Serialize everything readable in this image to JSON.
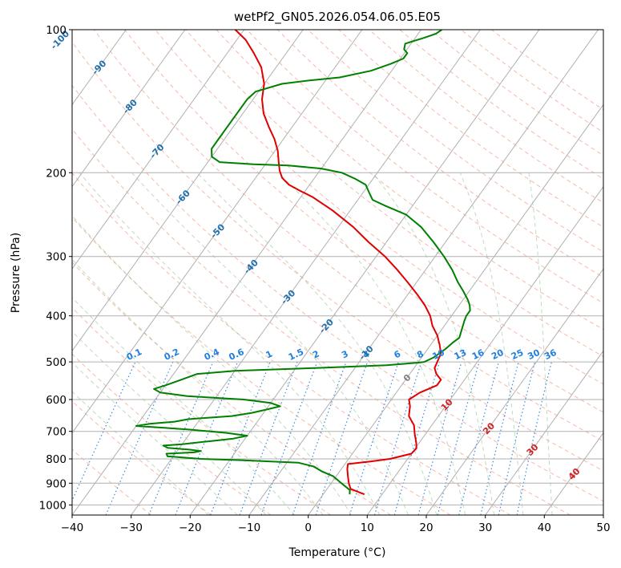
{
  "chart_data": {
    "type": "line",
    "title": "wetPf2_GN05.2026.054.06.05.E05",
    "xlabel": "Temperature (°C)",
    "ylabel": "Pressure (hPa)",
    "xlim": [
      -40,
      50
    ],
    "ylim": [
      1050,
      100
    ],
    "y_scale": "log",
    "x_ticks": [
      "−40",
      "−30",
      "−20",
      "−10",
      "0",
      "10",
      "20",
      "30",
      "40",
      "50"
    ],
    "y_ticks": [
      {
        "p": 100,
        "label": "100"
      },
      {
        "p": 200,
        "label": "200"
      },
      {
        "p": 300,
        "label": "300"
      },
      {
        "p": 400,
        "label": "400"
      },
      {
        "p": 500,
        "label": "500"
      },
      {
        "p": 600,
        "label": "600"
      },
      {
        "p": 700,
        "label": "700"
      },
      {
        "p": 800,
        "label": "800"
      },
      {
        "p": 900,
        "label": "900"
      },
      {
        "p": 1000,
        "label": "1000"
      }
    ],
    "grid": true,
    "colors": {
      "temperature": "#e00000",
      "dewpoint": "#008000",
      "isotherm": "#b0b0b0",
      "dry_adiabat": "#f08060",
      "moist_adiabat": "#70b070",
      "mixing_ratio": "#2080e0",
      "isotherm_label_cold": "#1f6fae",
      "isotherm_label_warm": "#d02020",
      "isotherm_label_zero": "#808080"
    },
    "series": [
      {
        "color": "#e00000",
        "points": [
          [
            950,
            7.0
          ],
          [
            925,
            4.0
          ],
          [
            900,
            3.0
          ],
          [
            870,
            2.0
          ],
          [
            840,
            1.0
          ],
          [
            820,
            0.5
          ],
          [
            810,
            4.0
          ],
          [
            800,
            7.0
          ],
          [
            780,
            10.0
          ],
          [
            760,
            10.2
          ],
          [
            740,
            9.5
          ],
          [
            710,
            8.2
          ],
          [
            680,
            7.0
          ],
          [
            650,
            5.0
          ],
          [
            620,
            4.0
          ],
          [
            600,
            3.0
          ],
          [
            580,
            4.0
          ],
          [
            560,
            6.0
          ],
          [
            545,
            6.0
          ],
          [
            530,
            4.5
          ],
          [
            515,
            3.5
          ],
          [
            500,
            3.2
          ],
          [
            480,
            2.8
          ],
          [
            460,
            1.5
          ],
          [
            440,
            0.0
          ],
          [
            420,
            -2.0
          ],
          [
            400,
            -3.6
          ],
          [
            380,
            -5.8
          ],
          [
            360,
            -8.5
          ],
          [
            340,
            -11.5
          ],
          [
            320,
            -14.8
          ],
          [
            300,
            -18.5
          ],
          [
            280,
            -23.0
          ],
          [
            260,
            -27.5
          ],
          [
            240,
            -33.0
          ],
          [
            225,
            -38.0
          ],
          [
            218,
            -41.0
          ],
          [
            212,
            -43.5
          ],
          [
            205,
            -45.5
          ],
          [
            198,
            -46.8
          ],
          [
            190,
            -48.0
          ],
          [
            180,
            -49.5
          ],
          [
            170,
            -51.5
          ],
          [
            160,
            -54.0
          ],
          [
            150,
            -56.5
          ],
          [
            140,
            -58.5
          ],
          [
            130,
            -60.0
          ],
          [
            120,
            -62.5
          ],
          [
            112,
            -65.5
          ],
          [
            105,
            -68.5
          ],
          [
            100,
            -71.5
          ]
        ]
      },
      {
        "color": "#008000",
        "points": [
          [
            950,
            4.5
          ],
          [
            930,
            4.0
          ],
          [
            910,
            2.5
          ],
          [
            890,
            1.0
          ],
          [
            870,
            -0.5
          ],
          [
            850,
            -3.0
          ],
          [
            830,
            -5.0
          ],
          [
            815,
            -8.0
          ],
          [
            805,
            -18.0
          ],
          [
            800,
            -25.0
          ],
          [
            790,
            -31.0
          ],
          [
            780,
            -31.5
          ],
          [
            775,
            -27.0
          ],
          [
            770,
            -26.0
          ],
          [
            765,
            -28.0
          ],
          [
            758,
            -32.0
          ],
          [
            750,
            -33.0
          ],
          [
            745,
            -30.0
          ],
          [
            735,
            -26.0
          ],
          [
            725,
            -22.0
          ],
          [
            715,
            -20.0
          ],
          [
            705,
            -24.0
          ],
          [
            695,
            -30.0
          ],
          [
            688,
            -35.0
          ],
          [
            682,
            -40.0
          ],
          [
            675,
            -38.0
          ],
          [
            668,
            -34.0
          ],
          [
            660,
            -32.0
          ],
          [
            650,
            -25.0
          ],
          [
            640,
            -22.0
          ],
          [
            630,
            -20.0
          ],
          [
            620,
            -18.0
          ],
          [
            610,
            -20.0
          ],
          [
            600,
            -25.0
          ],
          [
            590,
            -35.0
          ],
          [
            580,
            -40.0
          ],
          [
            570,
            -41.5
          ],
          [
            560,
            -40.0
          ],
          [
            545,
            -38.0
          ],
          [
            530,
            -36.0
          ],
          [
            522,
            -30.0
          ],
          [
            514,
            -15.0
          ],
          [
            508,
            -5.0
          ],
          [
            502,
            0.0
          ],
          [
            500,
            1.0
          ],
          [
            490,
            2.0
          ],
          [
            470,
            3.0
          ],
          [
            455,
            3.5
          ],
          [
            445,
            4.0
          ],
          [
            430,
            3.5
          ],
          [
            410,
            2.8
          ],
          [
            400,
            2.5
          ],
          [
            390,
            2.5
          ],
          [
            380,
            1.8
          ],
          [
            370,
            0.8
          ],
          [
            355,
            -1.0
          ],
          [
            340,
            -3.0
          ],
          [
            320,
            -5.5
          ],
          [
            300,
            -8.5
          ],
          [
            280,
            -12.0
          ],
          [
            260,
            -16.0
          ],
          [
            245,
            -20.0
          ],
          [
            235,
            -24.5
          ],
          [
            228,
            -27.5
          ],
          [
            220,
            -29.0
          ],
          [
            212,
            -30.5
          ],
          [
            206,
            -33.0
          ],
          [
            200,
            -36.0
          ],
          [
            196,
            -40.0
          ],
          [
            193,
            -46.0
          ],
          [
            192,
            -52.0
          ],
          [
            190,
            -58.0
          ],
          [
            185,
            -60.0
          ],
          [
            178,
            -61.0
          ],
          [
            170,
            -61.0
          ],
          [
            160,
            -61.0
          ],
          [
            150,
            -61.0
          ],
          [
            140,
            -61.0
          ],
          [
            135,
            -60.5
          ],
          [
            130,
            -57.0
          ],
          [
            128,
            -53.0
          ],
          [
            126,
            -48.0
          ],
          [
            122,
            -43.5
          ],
          [
            118,
            -41.0
          ],
          [
            115,
            -39.5
          ],
          [
            112,
            -39.5
          ],
          [
            110,
            -40.5
          ],
          [
            107,
            -41.0
          ],
          [
            104,
            -38.5
          ],
          [
            102,
            -37.0
          ],
          [
            100,
            -36.5
          ]
        ]
      }
    ],
    "isotherm_labels": [
      {
        "t": -100,
        "label": "-100",
        "p": 105
      },
      {
        "t": -90,
        "label": "-90",
        "p": 120
      },
      {
        "t": -80,
        "label": "-80",
        "p": 145
      },
      {
        "t": -70,
        "label": "-70",
        "p": 180
      },
      {
        "t": -60,
        "label": "-60",
        "p": 225
      },
      {
        "t": -50,
        "label": "-50",
        "p": 265
      },
      {
        "t": -40,
        "label": "-40",
        "p": 315
      },
      {
        "t": -30,
        "label": "-30",
        "p": 365
      },
      {
        "t": -20,
        "label": "-20",
        "p": 420
      },
      {
        "t": -10,
        "label": "-10",
        "p": 478
      },
      {
        "t": 0,
        "label": "0",
        "p": 540
      },
      {
        "t": 10,
        "label": "10",
        "p": 615
      },
      {
        "t": 20,
        "label": "20",
        "p": 690
      },
      {
        "t": 30,
        "label": "30",
        "p": 765
      },
      {
        "t": 40,
        "label": "40",
        "p": 860
      }
    ],
    "mixing_ratio_labels": [
      "0.1",
      "0.2",
      "0.4",
      "0.6",
      "1",
      "1.5",
      "2",
      "3",
      "4",
      "6",
      "8",
      "10",
      "13",
      "16",
      "20",
      "25",
      "30",
      "36"
    ]
  }
}
